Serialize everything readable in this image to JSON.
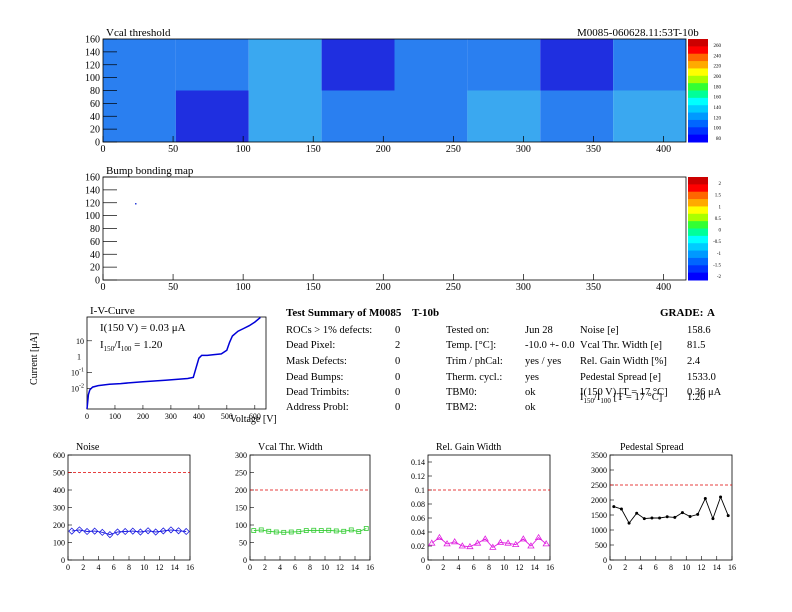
{
  "header": {
    "vcal_title": "Vcal threshold",
    "module_id": "M0085-060628.11:53T-10b"
  },
  "bump_title": "Bump bonding map",
  "colors": {
    "map_deep": "#1f2fe0",
    "map_mid": "#2a7ff0",
    "map_light": "#3aa8f0",
    "iv_line": "#0000d8",
    "noise": "#1a1ae0",
    "vcal": "#33cc33",
    "gain": "#e020e0",
    "pedestal": "#000000",
    "threshold": "#e00000"
  },
  "palette_labels": {
    "vcal": [
      "260",
      "240",
      "220",
      "200",
      "180",
      "160",
      "140",
      "120",
      "100",
      "80"
    ],
    "bump": [
      "2",
      "1.5",
      "1",
      "0.5",
      "0",
      "-0.5",
      "-1",
      "-1.5",
      "-2"
    ]
  },
  "iv": {
    "title": "I-V-Curve",
    "ylabel": "Current [μA]",
    "xlabel": "Voltage [V]",
    "label_150": "I(150 V) = 0.03 μA",
    "ratio_I": "I",
    "ratio_sub1": "150",
    "ratio_mid": "/I",
    "ratio_sub2": "100",
    "ratio_val": " = 1.20"
  },
  "summary": {
    "title": "Test Summary of M0085",
    "variant": "T-10b",
    "grade_label": "GRADE:",
    "grade": "A",
    "left": [
      {
        "label": "ROCs > 1% defects:",
        "value": "0"
      },
      {
        "label": "Dead Pixel:",
        "value": "2"
      },
      {
        "label": "Mask Defects:",
        "value": "0"
      },
      {
        "label": "Dead Bumps:",
        "value": "0"
      },
      {
        "label": "Dead Trimbits:",
        "value": "0"
      },
      {
        "label": "Address Probl:",
        "value": "0"
      }
    ],
    "mid": [
      {
        "label": "Tested on:",
        "value": "Jun 28"
      },
      {
        "label": "Temp. [°C]:",
        "value": "-10.0 +- 0.0"
      },
      {
        "label": "Trim / phCal:",
        "value": "yes / yes"
      },
      {
        "label": "Therm. cycl.:",
        "value": "yes"
      },
      {
        "label": "TBM0:",
        "value": "ok"
      },
      {
        "label": "TBM2:",
        "value": "ok"
      }
    ],
    "right": [
      {
        "label": "Noise [e]",
        "value": "158.6"
      },
      {
        "label": "Vcal Thr. Width [e]",
        "value": "81.5"
      },
      {
        "label": "Rel. Gain Width [%]",
        "value": "2.4"
      },
      {
        "label": "Pedestal Spread [e]",
        "value": "1533.0"
      },
      {
        "label": "I(150 V) [T = 17 °C]",
        "value": "0.36 μA"
      }
    ],
    "ratio_row": {
      "I": "I",
      "sub1": "150",
      "mid": "/I",
      "sub2": "100",
      "rest": " [T = 17 °C]",
      "value": "1.20"
    }
  },
  "chart_data": [
    {
      "type": "heatmap",
      "title": "Vcal threshold",
      "xlim": [
        0,
        416
      ],
      "ylim": [
        0,
        160
      ],
      "xticks": [
        "0",
        "50",
        "100",
        "150",
        "200",
        "250",
        "300",
        "350",
        "400"
      ],
      "yticks": [
        "0",
        "20",
        "40",
        "60",
        "80",
        "100",
        "120",
        "140",
        "160"
      ],
      "grid": false
    },
    {
      "type": "heatmap",
      "title": "Bump bonding map",
      "xlim": [
        0,
        416
      ],
      "ylim": [
        0,
        160
      ],
      "xticks": [
        "0",
        "50",
        "100",
        "150",
        "200",
        "250",
        "300",
        "350",
        "400"
      ],
      "yticks": [
        "0",
        "20",
        "40",
        "60",
        "80",
        "100",
        "120",
        "140",
        "160"
      ],
      "grid": false
    },
    {
      "type": "line",
      "title": "I-V-Curve",
      "xlabel": "Voltage [V]",
      "ylabel": "Current [μA]",
      "xlim": [
        0,
        640
      ],
      "yscale": "log",
      "xticks": [
        "0",
        "100",
        "200",
        "300",
        "400",
        "500",
        "600"
      ],
      "x": [
        0,
        5,
        10,
        20,
        40,
        80,
        120,
        160,
        200,
        240,
        280,
        320,
        360,
        380,
        390,
        400,
        410,
        430,
        450,
        480,
        500,
        510,
        520,
        540,
        560,
        580,
        600,
        620
      ],
      "y": [
        0.0005,
        0.004,
        0.008,
        0.012,
        0.015,
        0.018,
        0.02,
        0.023,
        0.026,
        0.029,
        0.033,
        0.037,
        0.042,
        0.05,
        0.2,
        0.8,
        1.2,
        1.2,
        1.3,
        1.5,
        2.5,
        8,
        20,
        40,
        60,
        90,
        150,
        300
      ]
    },
    {
      "type": "line",
      "title": "Noise",
      "xlim": [
        0,
        16
      ],
      "ylim": [
        0,
        600
      ],
      "xticks": [
        "0",
        "2",
        "4",
        "6",
        "8",
        "10",
        "12",
        "14",
        "16"
      ],
      "yticks": [
        "0",
        "100",
        "200",
        "300",
        "400",
        "500",
        "600"
      ],
      "threshold": 500,
      "x": [
        0,
        1,
        2,
        3,
        4,
        5,
        6,
        7,
        8,
        9,
        10,
        11,
        12,
        13,
        14,
        15
      ],
      "y": [
        165,
        172,
        163,
        165,
        158,
        145,
        160,
        163,
        165,
        160,
        167,
        160,
        166,
        172,
        167,
        163
      ]
    },
    {
      "type": "line",
      "title": "Vcal Thr. Width",
      "xlim": [
        0,
        16
      ],
      "ylim": [
        0,
        300
      ],
      "xticks": [
        "0",
        "2",
        "4",
        "6",
        "8",
        "10",
        "12",
        "14",
        "16"
      ],
      "yticks": [
        "0",
        "50",
        "100",
        "150",
        "200",
        "250",
        "300"
      ],
      "threshold": 200,
      "x": [
        0,
        1,
        2,
        3,
        4,
        5,
        6,
        7,
        8,
        9,
        10,
        11,
        12,
        13,
        14,
        15
      ],
      "y": [
        84,
        86,
        82,
        80,
        79,
        80,
        81,
        84,
        85,
        84,
        85,
        83,
        82,
        86,
        81,
        90
      ]
    },
    {
      "type": "line",
      "title": "Rel. Gain Width",
      "xlim": [
        0,
        16
      ],
      "ylim": [
        0,
        0.15
      ],
      "xticks": [
        "0",
        "2",
        "4",
        "6",
        "8",
        "10",
        "12",
        "14",
        "16"
      ],
      "yticks": [
        "0",
        "0.02",
        "0.04",
        "0.06",
        "0.08",
        "0.1",
        "0.12",
        "0.14"
      ],
      "threshold": 0.1,
      "x": [
        0,
        1,
        2,
        3,
        4,
        5,
        6,
        7,
        8,
        9,
        10,
        11,
        12,
        13,
        14,
        15
      ],
      "y": [
        0.024,
        0.032,
        0.023,
        0.026,
        0.02,
        0.019,
        0.024,
        0.03,
        0.018,
        0.025,
        0.024,
        0.022,
        0.03,
        0.02,
        0.032,
        0.023
      ]
    },
    {
      "type": "line",
      "title": "Pedestal Spread",
      "xlim": [
        0,
        16
      ],
      "ylim": [
        0,
        3500
      ],
      "xticks": [
        "0",
        "2",
        "4",
        "6",
        "8",
        "10",
        "12",
        "14",
        "16"
      ],
      "yticks": [
        "0",
        "500",
        "1000",
        "1500",
        "2000",
        "2500",
        "3000",
        "3500"
      ],
      "threshold": 2500,
      "x": [
        0,
        1,
        2,
        3,
        4,
        5,
        6,
        7,
        8,
        9,
        10,
        11,
        12,
        13,
        14,
        15
      ],
      "y": [
        1780,
        1700,
        1230,
        1560,
        1380,
        1400,
        1400,
        1440,
        1420,
        1580,
        1450,
        1520,
        2050,
        1380,
        2100,
        1480
      ]
    }
  ]
}
